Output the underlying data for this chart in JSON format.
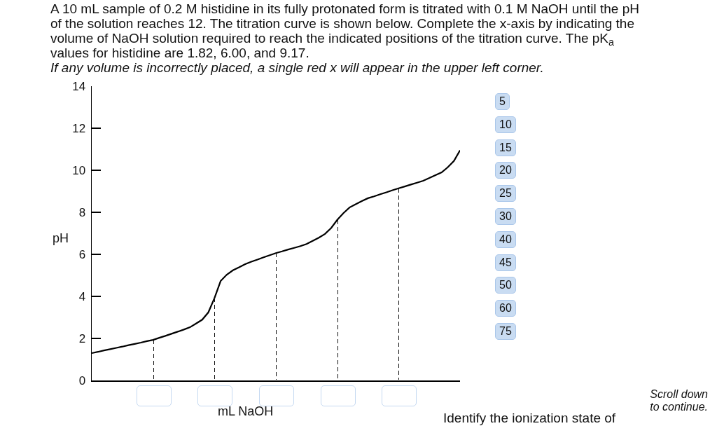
{
  "chart_data": {
    "type": "line",
    "title": "A 10 mL sample of 0.2 M histidine in its fully protonated form is titrated with 0.1 M NaOH until the pH of the solution reaches 12. The titration curve is shown below. Complete the x-axis by indicating the volume of NaOH solution required to reach the indicated positions of the titration curve. The pK$_{a}$ values for histidine are 1.82, 6.00, and 9.17.",
    "subtitle": "If any volume is incorrectly placed, a single red x will appear in the upper left corner.",
    "xlabel": "mL NaOH",
    "ylabel": "pH",
    "categories": [
      null,
      null,
      null,
      null,
      null,
      null,
      null,
      null,
      null,
      null,
      null,
      null,
      null,
      null,
      null,
      null,
      null,
      null,
      null,
      null,
      null,
      null,
      null,
      null,
      null,
      null,
      null,
      null,
      null,
      null,
      null,
      null,
      null,
      null,
      null,
      null,
      null,
      null,
      null,
      null,
      null,
      null,
      null,
      null,
      null,
      null,
      null,
      null,
      null,
      null,
      null,
      null,
      null,
      null,
      null,
      null,
      null,
      null,
      null,
      null,
      null
    ],
    "values": [
      1.3,
      1.36,
      1.43,
      1.49,
      1.55,
      1.61,
      1.68,
      1.74,
      1.8,
      1.87,
      1.93,
      2.03,
      2.12,
      2.22,
      2.32,
      2.42,
      2.53,
      2.71,
      2.89,
      3.24,
      3.92,
      4.73,
      5.03,
      5.24,
      5.38,
      5.53,
      5.65,
      5.75,
      5.86,
      5.96,
      6.06,
      6.14,
      6.23,
      6.31,
      6.39,
      6.49,
      6.64,
      6.79,
      6.97,
      7.25,
      7.64,
      7.96,
      8.23,
      8.38,
      8.53,
      8.67,
      8.76,
      8.86,
      8.95,
      9.05,
      9.14,
      9.23,
      9.32,
      9.41,
      9.5,
      9.63,
      9.77,
      9.9,
      10.14,
      10.44,
      10.95
    ],
    "color": "#000000",
    "ylim": [
      0,
      14
    ],
    "yticks": [
      0,
      2,
      4,
      6,
      8,
      10,
      12,
      14
    ],
    "grid": false,
    "marker": "none",
    "line_style": "solid",
    "tick_labels": "y",
    "annotations": [
      "5",
      "10",
      "15",
      "20",
      "25",
      "30",
      "40",
      "45",
      "50",
      "60",
      "75",
      "Scroll down to continue.",
      "Identify the ionization state of"
    ]
  }
}
